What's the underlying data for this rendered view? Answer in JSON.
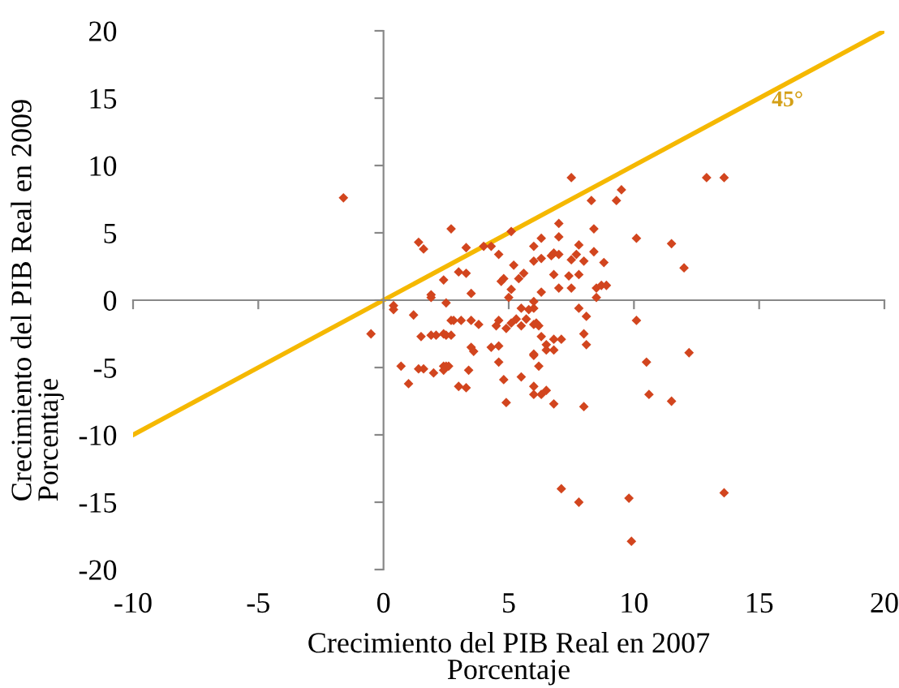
{
  "chart_data": {
    "type": "scatter",
    "xlabel": "Crecimiento del PIB Real en 2007\nPorcentaje",
    "ylabel": "Crecimiento del PIB Real en 2009\nPorcentaje",
    "xlim": [
      -10,
      20
    ],
    "xticks": [
      -10,
      -5,
      0,
      5,
      10,
      15,
      20
    ],
    "ylim": [
      -20,
      20
    ],
    "yticks": [
      -20,
      -15,
      -10,
      -5,
      0,
      5,
      10,
      15,
      20
    ],
    "marker": "diamond",
    "annotations": [
      "45°"
    ],
    "series": [
      {
        "color": "#d2451e",
        "x": [
          -1.6,
          7.5,
          8.3,
          2.7,
          1.4,
          1.6,
          3.3,
          4.0,
          4.3,
          5.1,
          4.6,
          6.0,
          6.3,
          7.0,
          7.0,
          7.8,
          8.4,
          2.4,
          3.0,
          3.3,
          3.5,
          1.9,
          1.9,
          2.5,
          4.7,
          4.8,
          5.2,
          5.4,
          5.6,
          5.1,
          5.0,
          6.0,
          6.3,
          6.7,
          6.8,
          7.0,
          7.5,
          7.7,
          8.0,
          8.4,
          6.8,
          7.4,
          7.8,
          7.0,
          7.5,
          6.3,
          8.5,
          8.7,
          8.9,
          8.5,
          0.4,
          0.4,
          1.2,
          -0.5,
          2.7,
          2.8,
          3.1,
          3.5,
          3.8,
          4.6,
          4.5,
          4.9,
          5.1,
          5.3,
          5.5,
          5.8,
          6.0,
          6.0,
          5.5,
          6.0,
          6.1,
          6.2,
          5.7,
          6.3,
          6.5,
          6.8,
          7.1,
          7.8,
          8.1,
          8.0,
          8.1,
          1.5,
          1.9,
          2.1,
          2.4,
          2.5,
          2.7,
          3.5,
          3.6,
          4.3,
          4.6,
          4.6,
          6.0,
          6.5,
          6.8,
          6.2,
          0.7,
          1.4,
          1.6,
          2.4,
          2.5,
          3.4,
          1.0,
          2.0,
          2.4,
          2.6,
          3.0,
          3.3,
          4.8,
          4.9,
          5.5,
          6.0,
          6.0,
          6.0,
          6.3,
          6.5,
          6.8,
          8.0,
          7.1,
          7.8,
          12.9,
          13.6,
          9.5,
          9.3,
          10.1,
          11.5,
          12.0,
          8.8,
          10.1,
          12.2,
          10.5,
          10.6,
          11.5,
          9.8,
          13.6,
          9.9
        ],
        "values": [
          7.6,
          9.1,
          7.4,
          5.3,
          4.3,
          3.8,
          3.9,
          4.0,
          4.0,
          5.1,
          3.4,
          4.0,
          4.6,
          5.7,
          4.7,
          4.1,
          5.3,
          1.5,
          2.1,
          2.0,
          0.5,
          0.4,
          0.2,
          -0.2,
          1.4,
          1.6,
          2.6,
          1.6,
          2.0,
          0.8,
          0.2,
          2.9,
          3.1,
          3.3,
          3.5,
          3.4,
          3.0,
          3.4,
          2.9,
          3.6,
          1.9,
          1.8,
          1.9,
          0.9,
          0.9,
          0.6,
          0.9,
          1.1,
          1.1,
          0.2,
          -0.4,
          -0.7,
          -1.1,
          -2.5,
          -1.5,
          -1.5,
          -1.5,
          -1.5,
          -1.8,
          -1.5,
          -1.9,
          -2.1,
          -1.7,
          -1.4,
          -0.6,
          -0.7,
          -0.6,
          -0.1,
          -1.9,
          -1.8,
          -1.7,
          -1.9,
          -1.4,
          -2.7,
          -3.3,
          -2.9,
          -2.9,
          -0.6,
          -1.2,
          -2.5,
          -3.3,
          -2.7,
          -2.6,
          -2.6,
          -2.5,
          -2.6,
          -2.6,
          -3.5,
          -3.8,
          -3.5,
          -3.4,
          -4.6,
          -4.1,
          -3.7,
          -3.7,
          -4.9,
          -4.9,
          -5.1,
          -5.1,
          -4.9,
          -4.9,
          -5.2,
          -6.2,
          -5.4,
          -5.2,
          -4.9,
          -6.4,
          -6.5,
          -5.9,
          -7.6,
          -5.7,
          -4.0,
          -6.4,
          -7.0,
          -7.0,
          -6.7,
          -7.7,
          -7.9,
          -14.0,
          -15.0,
          9.1,
          9.1,
          8.2,
          7.4,
          4.6,
          4.2,
          2.4,
          2.8,
          -1.5,
          -3.9,
          -4.6,
          -7.0,
          -7.5,
          -14.7,
          -14.3,
          -17.9
        ]
      },
      {
        "type": "line",
        "marker": "none",
        "color": "#f5b800",
        "x": [
          -10,
          20
        ],
        "values": [
          -10,
          20
        ]
      }
    ]
  }
}
